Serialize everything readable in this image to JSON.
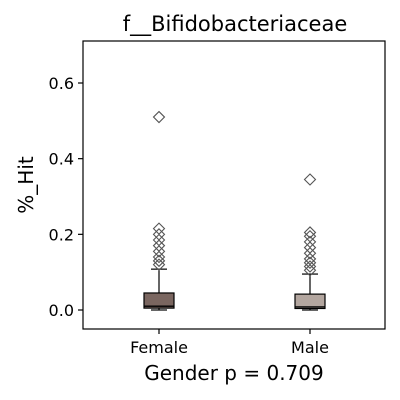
{
  "chart_data": {
    "type": "box",
    "title": "f__Bifidobacteriaceae",
    "ylabel": "%_Hit",
    "xlabel": "Gender p = 0.709",
    "ylim": [
      -0.05,
      0.72
    ],
    "yticks": [
      "0.0",
      "0.2",
      "0.4",
      "0.6"
    ],
    "ytick_values": [
      0.0,
      0.2,
      0.4,
      0.6
    ],
    "categories": [
      "Female",
      "Male"
    ],
    "colors": {
      "Female": "#7a6660",
      "Male": "#b3a69f"
    },
    "boxes": [
      {
        "name": "Female",
        "whisker_low": 0.0,
        "q1": 0.005,
        "median": 0.01,
        "q3": 0.045,
        "whisker_high": 0.108,
        "outliers": [
          0.12,
          0.13,
          0.14,
          0.155,
          0.17,
          0.185,
          0.2,
          0.215,
          0.51
        ]
      },
      {
        "name": "Male",
        "whisker_low": 0.0,
        "q1": 0.004,
        "median": 0.008,
        "q3": 0.042,
        "whisker_high": 0.095,
        "outliers": [
          0.105,
          0.115,
          0.125,
          0.135,
          0.15,
          0.165,
          0.18,
          0.195,
          0.205,
          0.345
        ]
      }
    ]
  }
}
